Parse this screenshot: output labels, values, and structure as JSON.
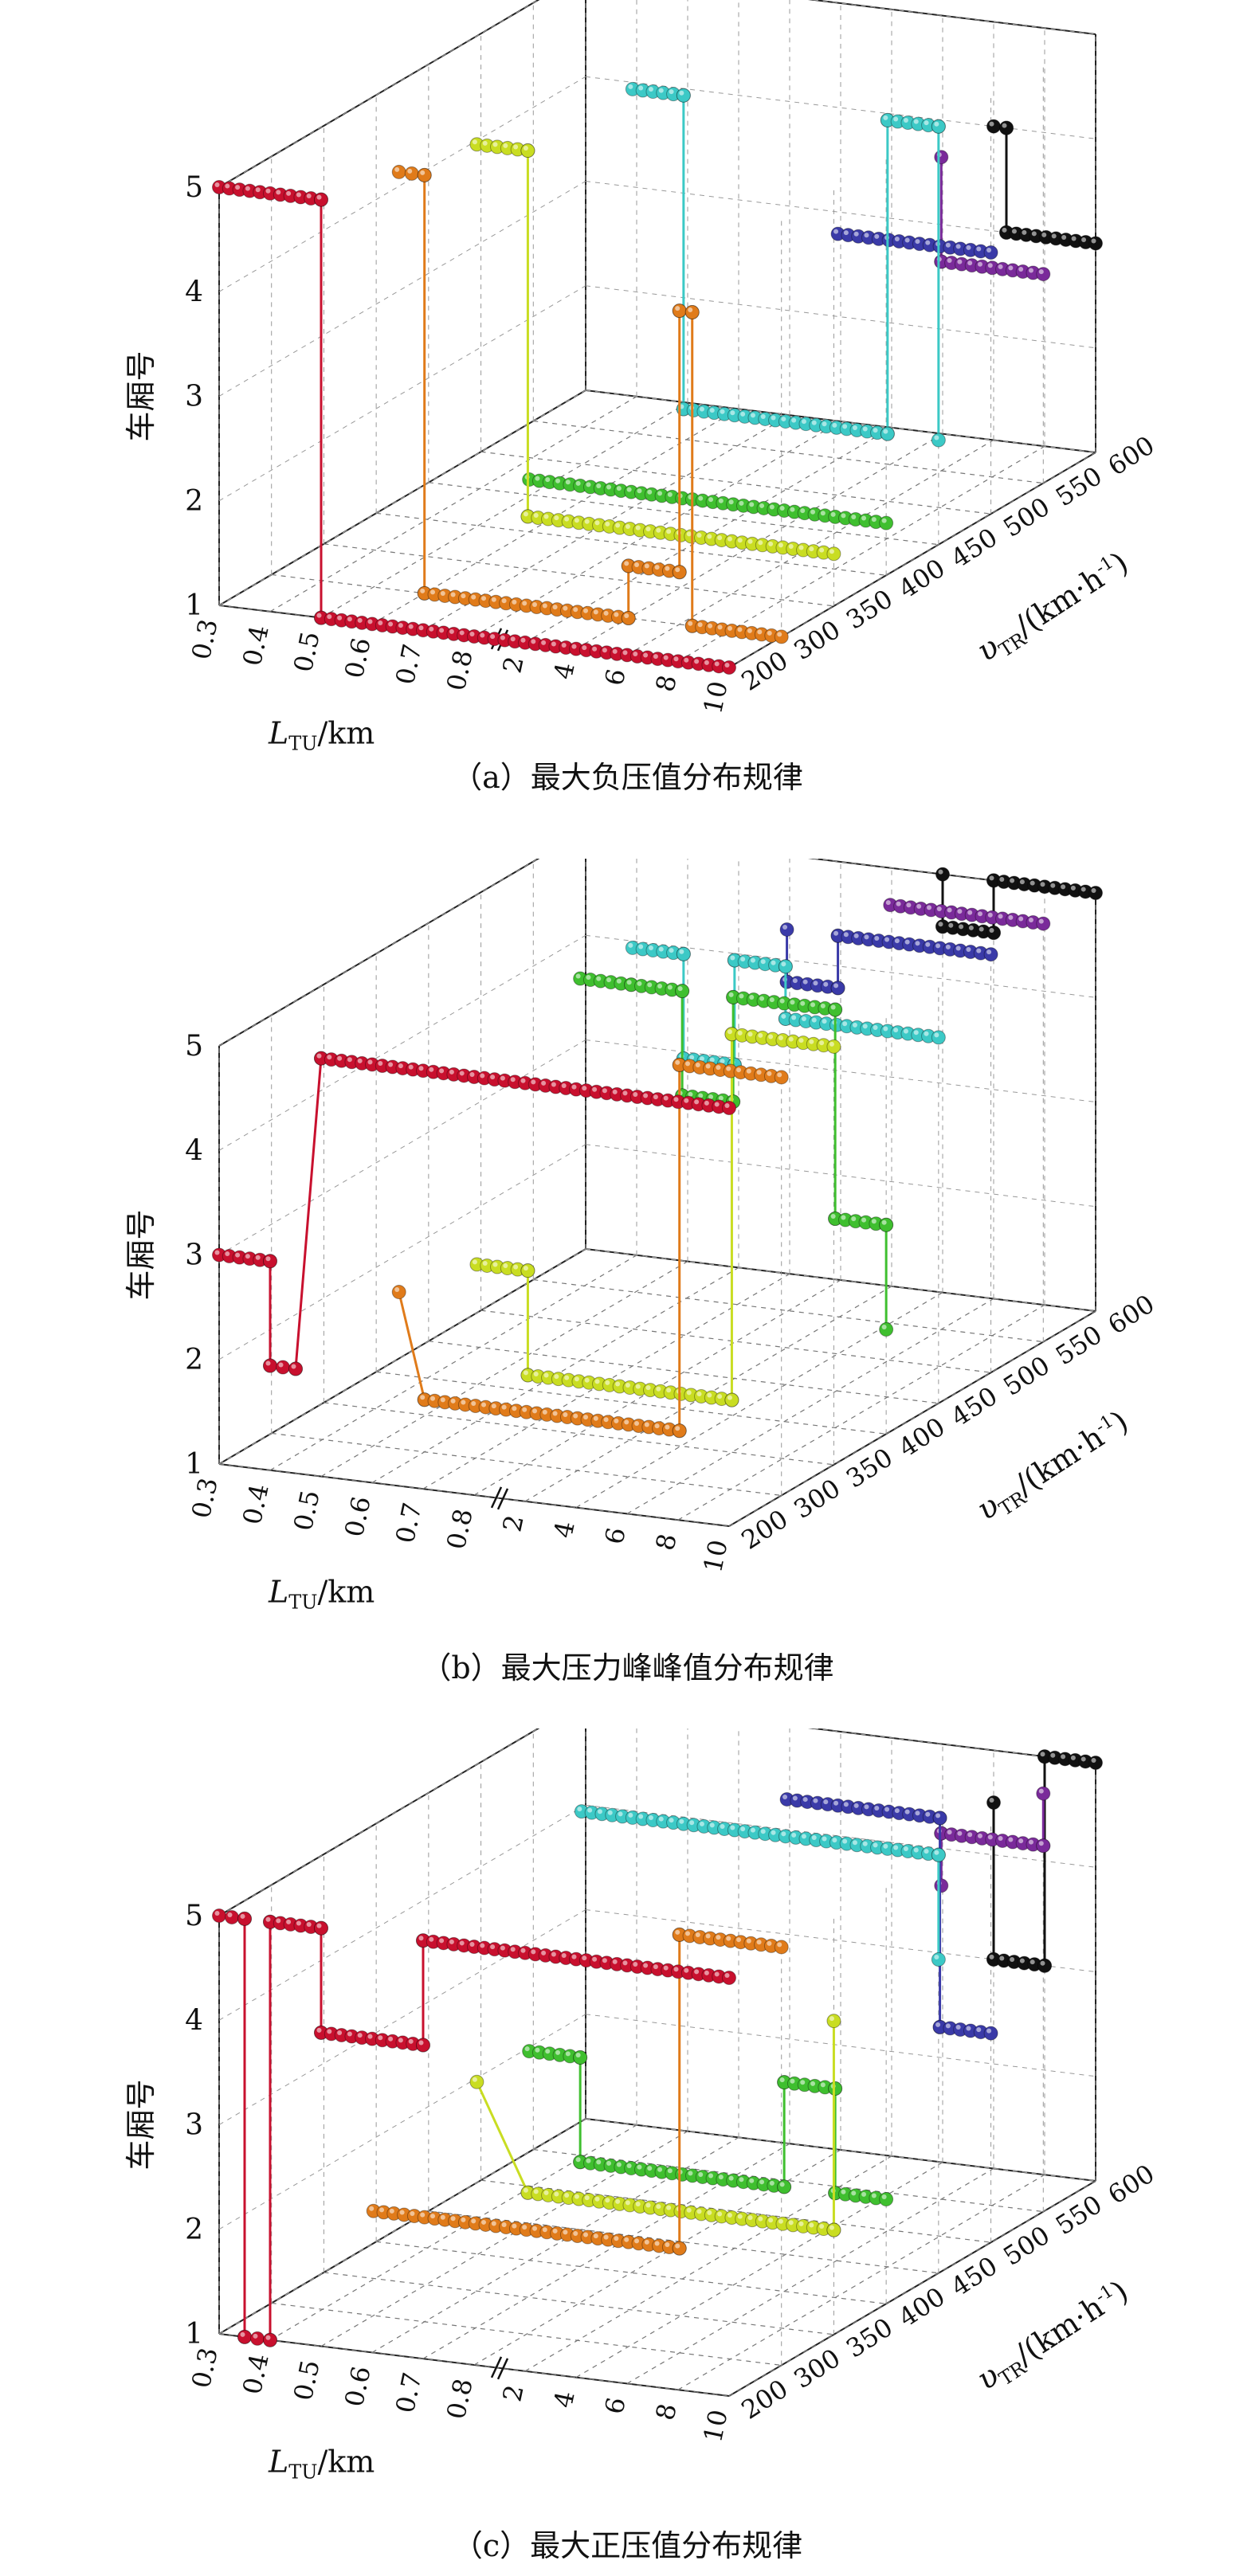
{
  "figure": {
    "panels": [
      {
        "id": "a",
        "caption": "（a）最大负压值分布规律"
      },
      {
        "id": "b",
        "caption": "（b）最大压力峰峰值分布规律"
      },
      {
        "id": "c",
        "caption": "（c）最大正压值分布规律"
      }
    ]
  },
  "chart_data": [
    {
      "type": "line",
      "chart_kind": "3d-scatter-line",
      "caption": "（a）最大负压值分布规律",
      "zlabel": "车厢号",
      "xlabel": "L_TU/km",
      "ylabel": "v_TR/(km·h⁻¹)",
      "z_ticks": [
        "1",
        "2",
        "3",
        "4",
        "5"
      ],
      "zlim": [
        1,
        5
      ],
      "x_ticks": [
        "0.3",
        "0.4",
        "0.5",
        "0.6",
        "0.7",
        "0.8",
        "2",
        "4",
        "6",
        "8",
        "10"
      ],
      "x_axis_break": "between 0.8 and 2",
      "y_ticks": [
        "200",
        "300",
        "350",
        "400",
        "450",
        "500",
        "550",
        "600"
      ],
      "grid": true,
      "series": [
        {
          "v": 200,
          "color": "#c8102e",
          "points": [
            [
              0.3,
              5
            ],
            [
              0.5,
              5
            ],
            [
              0.5,
              1
            ],
            [
              10,
              1
            ]
          ]
        },
        {
          "v": 300,
          "color": "#e07b1a",
          "points": [
            [
              0.55,
              5
            ],
            [
              0.6,
              5
            ],
            [
              0.6,
              1
            ],
            [
              4,
              1
            ],
            [
              4,
              1.5
            ],
            [
              6,
              1.5
            ],
            [
              6,
              4
            ],
            [
              6.5,
              4
            ],
            [
              6.5,
              1
            ],
            [
              10,
              1
            ]
          ]
        },
        {
          "v": 350,
          "color": "#c9dd22",
          "points": [
            [
              0.6,
              5
            ],
            [
              0.7,
              5
            ],
            [
              0.7,
              1.5
            ],
            [
              10,
              1.5
            ]
          ]
        },
        {
          "v": 400,
          "color": "#3fbf2f",
          "points": [
            [
              0.6,
              1.5
            ],
            [
              10,
              1.5
            ]
          ]
        },
        {
          "v": 450,
          "color": "#3cc9c6",
          "points": [
            [
              0.7,
              5
            ],
            [
              0.8,
              5
            ],
            [
              0.8,
              2
            ],
            [
              8,
              2
            ],
            [
              8,
              5
            ],
            [
              10,
              5
            ],
            [
              10,
              2
            ]
          ]
        },
        {
          "v": 500,
          "color": "#3a3aa8",
          "points": [
            [
              4,
              3.5
            ],
            [
              10,
              3.5
            ]
          ]
        },
        {
          "v": 550,
          "color": "#7a2a9a",
          "points": [
            [
              6,
              4
            ],
            [
              6,
              3
            ],
            [
              10,
              3
            ]
          ]
        },
        {
          "v": 600,
          "color": "#111111",
          "points": [
            [
              6,
              4
            ],
            [
              6.5,
              4
            ],
            [
              6.5,
              3
            ],
            [
              10,
              3
            ]
          ]
        }
      ]
    },
    {
      "type": "line",
      "chart_kind": "3d-scatter-line",
      "caption": "（b）最大压力峰峰值分布规律",
      "zlabel": "车厢号",
      "xlabel": "L_TU/km",
      "ylabel": "v_TR/(km·h⁻¹)",
      "z_ticks": [
        "1",
        "2",
        "3",
        "4",
        "5"
      ],
      "zlim": [
        1,
        5
      ],
      "x_ticks": [
        "0.3",
        "0.4",
        "0.5",
        "0.6",
        "0.7",
        "0.8",
        "2",
        "4",
        "6",
        "8",
        "10"
      ],
      "x_axis_break": "between 0.8 and 2",
      "y_ticks": [
        "200",
        "300",
        "350",
        "400",
        "450",
        "500",
        "550",
        "600"
      ],
      "grid": true,
      "series": [
        {
          "v": 200,
          "color": "#c8102e",
          "points": [
            [
              0.3,
              3
            ],
            [
              0.4,
              3
            ],
            [
              0.4,
              2
            ],
            [
              0.45,
              2
            ],
            [
              0.5,
              5
            ],
            [
              10,
              5
            ]
          ]
        },
        {
          "v": 300,
          "color": "#e07b1a",
          "points": [
            [
              0.55,
              2.5
            ],
            [
              0.6,
              1.5
            ],
            [
              6,
              1.5
            ],
            [
              6,
              5
            ],
            [
              10,
              5
            ]
          ]
        },
        {
          "v": 350,
          "color": "#c9dd22",
          "points": [
            [
              0.6,
              2.5
            ],
            [
              0.7,
              2.5
            ],
            [
              0.7,
              1.5
            ],
            [
              6,
              1.5
            ],
            [
              6,
              5
            ],
            [
              10,
              5
            ]
          ]
        },
        {
          "v": 400,
          "color": "#3fbf2f",
          "points": [
            [
              0.7,
              5
            ],
            [
              0.8,
              5
            ],
            [
              2,
              5
            ],
            [
              2,
              4
            ],
            [
              4,
              4
            ],
            [
              4,
              5
            ],
            [
              8,
              5
            ],
            [
              8,
              3
            ],
            [
              10,
              3
            ],
            [
              10,
              2
            ]
          ]
        },
        {
          "v": 450,
          "color": "#3cc9c6",
          "points": [
            [
              0.7,
              5
            ],
            [
              0.8,
              5
            ],
            [
              0.8,
              4
            ],
            [
              2,
              4
            ],
            [
              2,
              5
            ],
            [
              4,
              5
            ],
            [
              4,
              4.5
            ],
            [
              10,
              4.5
            ]
          ]
        },
        {
          "v": 500,
          "color": "#3a3aa8",
          "points": [
            [
              2,
              5
            ],
            [
              2,
              4.5
            ],
            [
              4,
              4.5
            ],
            [
              4,
              5
            ],
            [
              10,
              5
            ]
          ]
        },
        {
          "v": 550,
          "color": "#7a2a9a",
          "points": [
            [
              4,
              5
            ],
            [
              10,
              5
            ]
          ]
        },
        {
          "v": 600,
          "color": "#111111",
          "points": [
            [
              4,
              5
            ],
            [
              4,
              4.5
            ],
            [
              6,
              4.5
            ],
            [
              6,
              5
            ],
            [
              10,
              5
            ]
          ]
        }
      ]
    },
    {
      "type": "line",
      "chart_kind": "3d-scatter-line",
      "caption": "（c）最大正压值分布规律",
      "zlabel": "车厢号",
      "xlabel": "L_TU/km",
      "ylabel": "v_TR/(km·h⁻¹)",
      "z_ticks": [
        "1",
        "2",
        "3",
        "4",
        "5"
      ],
      "zlim": [
        1,
        5
      ],
      "x_ticks": [
        "0.3",
        "0.4",
        "0.5",
        "0.6",
        "0.7",
        "0.8",
        "2",
        "4",
        "6",
        "8",
        "10"
      ],
      "x_axis_break": "between 0.8 and 2",
      "y_ticks": [
        "200",
        "300",
        "350",
        "400",
        "450",
        "500",
        "550",
        "600"
      ],
      "grid": true,
      "series": [
        {
          "v": 200,
          "color": "#c8102e",
          "points": [
            [
              0.3,
              5
            ],
            [
              0.35,
              5
            ],
            [
              0.35,
              1
            ],
            [
              0.4,
              1
            ],
            [
              0.4,
              5
            ],
            [
              0.5,
              5
            ],
            [
              0.5,
              4
            ],
            [
              0.7,
              4
            ],
            [
              0.7,
              5
            ],
            [
              10,
              5
            ]
          ]
        },
        {
          "v": 300,
          "color": "#e07b1a",
          "points": [
            [
              0.5,
              2
            ],
            [
              6,
              2
            ],
            [
              6,
              5
            ],
            [
              10,
              5
            ]
          ]
        },
        {
          "v": 350,
          "color": "#c9dd22",
          "points": [
            [
              0.6,
              3
            ],
            [
              0.7,
              2
            ],
            [
              10,
              2
            ],
            [
              10,
              4
            ]
          ]
        },
        {
          "v": 400,
          "color": "#3fbf2f",
          "points": [
            [
              0.6,
              3
            ],
            [
              0.7,
              3
            ],
            [
              0.7,
              2
            ],
            [
              6,
              2
            ],
            [
              6,
              3
            ],
            [
              8,
              3
            ],
            [
              8,
              2
            ],
            [
              10,
              2
            ]
          ]
        },
        {
          "v": 450,
          "color": "#3cc9c6",
          "points": [
            [
              0.6,
              5
            ],
            [
              10,
              5
            ],
            [
              10,
              4
            ]
          ]
        },
        {
          "v": 500,
          "color": "#3a3aa8",
          "points": [
            [
              2,
              5
            ],
            [
              8,
              5
            ],
            [
              8,
              3
            ],
            [
              10,
              3
            ]
          ]
        },
        {
          "v": 550,
          "color": "#7a2a9a",
          "points": [
            [
              6,
              4
            ],
            [
              6,
              4.5
            ],
            [
              10,
              4.5
            ],
            [
              10,
              5
            ]
          ]
        },
        {
          "v": 600,
          "color": "#111111",
          "points": [
            [
              6,
              4.5
            ],
            [
              6,
              3
            ],
            [
              8,
              3
            ],
            [
              8,
              5
            ],
            [
              10,
              5
            ]
          ]
        }
      ]
    }
  ]
}
